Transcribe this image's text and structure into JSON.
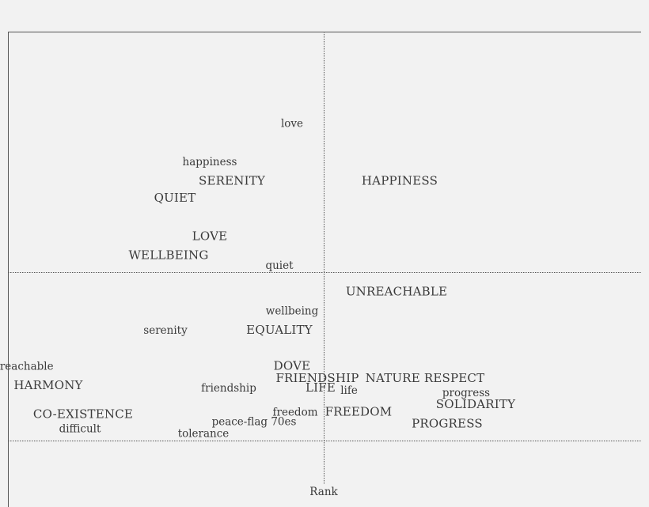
{
  "chart_data": {
    "type": "scatter",
    "title": "",
    "xlabel": "Rank",
    "ylabel": "",
    "grid": false,
    "xlim": [
      -1,
      1
    ],
    "ylim": [
      -1,
      1
    ],
    "reference_lines": {
      "x": 0,
      "y": 0,
      "y_lower": -0.7
    },
    "points": [
      {
        "label": "love",
        "x": -0.1,
        "y": 0.62,
        "style": "lower"
      },
      {
        "label": "happiness",
        "x": -0.36,
        "y": 0.46,
        "style": "lower"
      },
      {
        "label": "SERENITY",
        "x": -0.29,
        "y": 0.38,
        "style": "upper"
      },
      {
        "label": "HAPPINESS",
        "x": 0.24,
        "y": 0.38,
        "style": "upper"
      },
      {
        "label": "QUIET",
        "x": -0.47,
        "y": 0.31,
        "style": "upper"
      },
      {
        "label": "LOVE",
        "x": -0.36,
        "y": 0.15,
        "style": "upper"
      },
      {
        "label": "WELLBEING",
        "x": -0.49,
        "y": 0.07,
        "style": "upper"
      },
      {
        "label": "quiet",
        "x": -0.14,
        "y": 0.03,
        "style": "lower"
      },
      {
        "label": "UNREACHABLE",
        "x": 0.23,
        "y": -0.08,
        "style": "upper"
      },
      {
        "label": "wellbeing",
        "x": -0.1,
        "y": -0.16,
        "style": "lower"
      },
      {
        "label": "serenity",
        "x": -0.5,
        "y": -0.24,
        "style": "lower"
      },
      {
        "label": "EQUALITY",
        "x": -0.14,
        "y": -0.24,
        "style": "upper"
      },
      {
        "label": "unreachable",
        "x": -0.96,
        "y": -0.39,
        "style": "lower"
      },
      {
        "label": "DOVE",
        "x": -0.1,
        "y": -0.39,
        "style": "upper"
      },
      {
        "label": "FRIENDSHIP",
        "x": -0.02,
        "y": -0.44,
        "style": "upper"
      },
      {
        "label": "NATURE RESPECT",
        "x": 0.32,
        "y": -0.44,
        "style": "upper"
      },
      {
        "label": "HARMONY",
        "x": -0.87,
        "y": -0.47,
        "style": "upper"
      },
      {
        "label": "friendship",
        "x": -0.3,
        "y": -0.48,
        "style": "lower"
      },
      {
        "label": "LIFE",
        "x": -0.01,
        "y": -0.48,
        "style": "upper"
      },
      {
        "label": "life",
        "x": 0.08,
        "y": -0.49,
        "style": "lower"
      },
      {
        "label": "progress",
        "x": 0.45,
        "y": -0.5,
        "style": "lower"
      },
      {
        "label": "SOLIDARITY",
        "x": 0.48,
        "y": -0.55,
        "style": "upper"
      },
      {
        "label": "freedom",
        "x": -0.09,
        "y": -0.58,
        "style": "lower"
      },
      {
        "label": "FREEDOM",
        "x": 0.11,
        "y": -0.58,
        "style": "upper"
      },
      {
        "label": "CO-EXISTENCE",
        "x": -0.76,
        "y": -0.59,
        "style": "upper"
      },
      {
        "label": "peace-flag 70es",
        "x": -0.22,
        "y": -0.62,
        "style": "lower"
      },
      {
        "label": "PROGRESS",
        "x": 0.39,
        "y": -0.63,
        "style": "upper"
      },
      {
        "label": "difficult",
        "x": -0.77,
        "y": -0.65,
        "style": "lower"
      },
      {
        "label": "tolerance",
        "x": -0.38,
        "y": -0.67,
        "style": "lower"
      }
    ]
  }
}
